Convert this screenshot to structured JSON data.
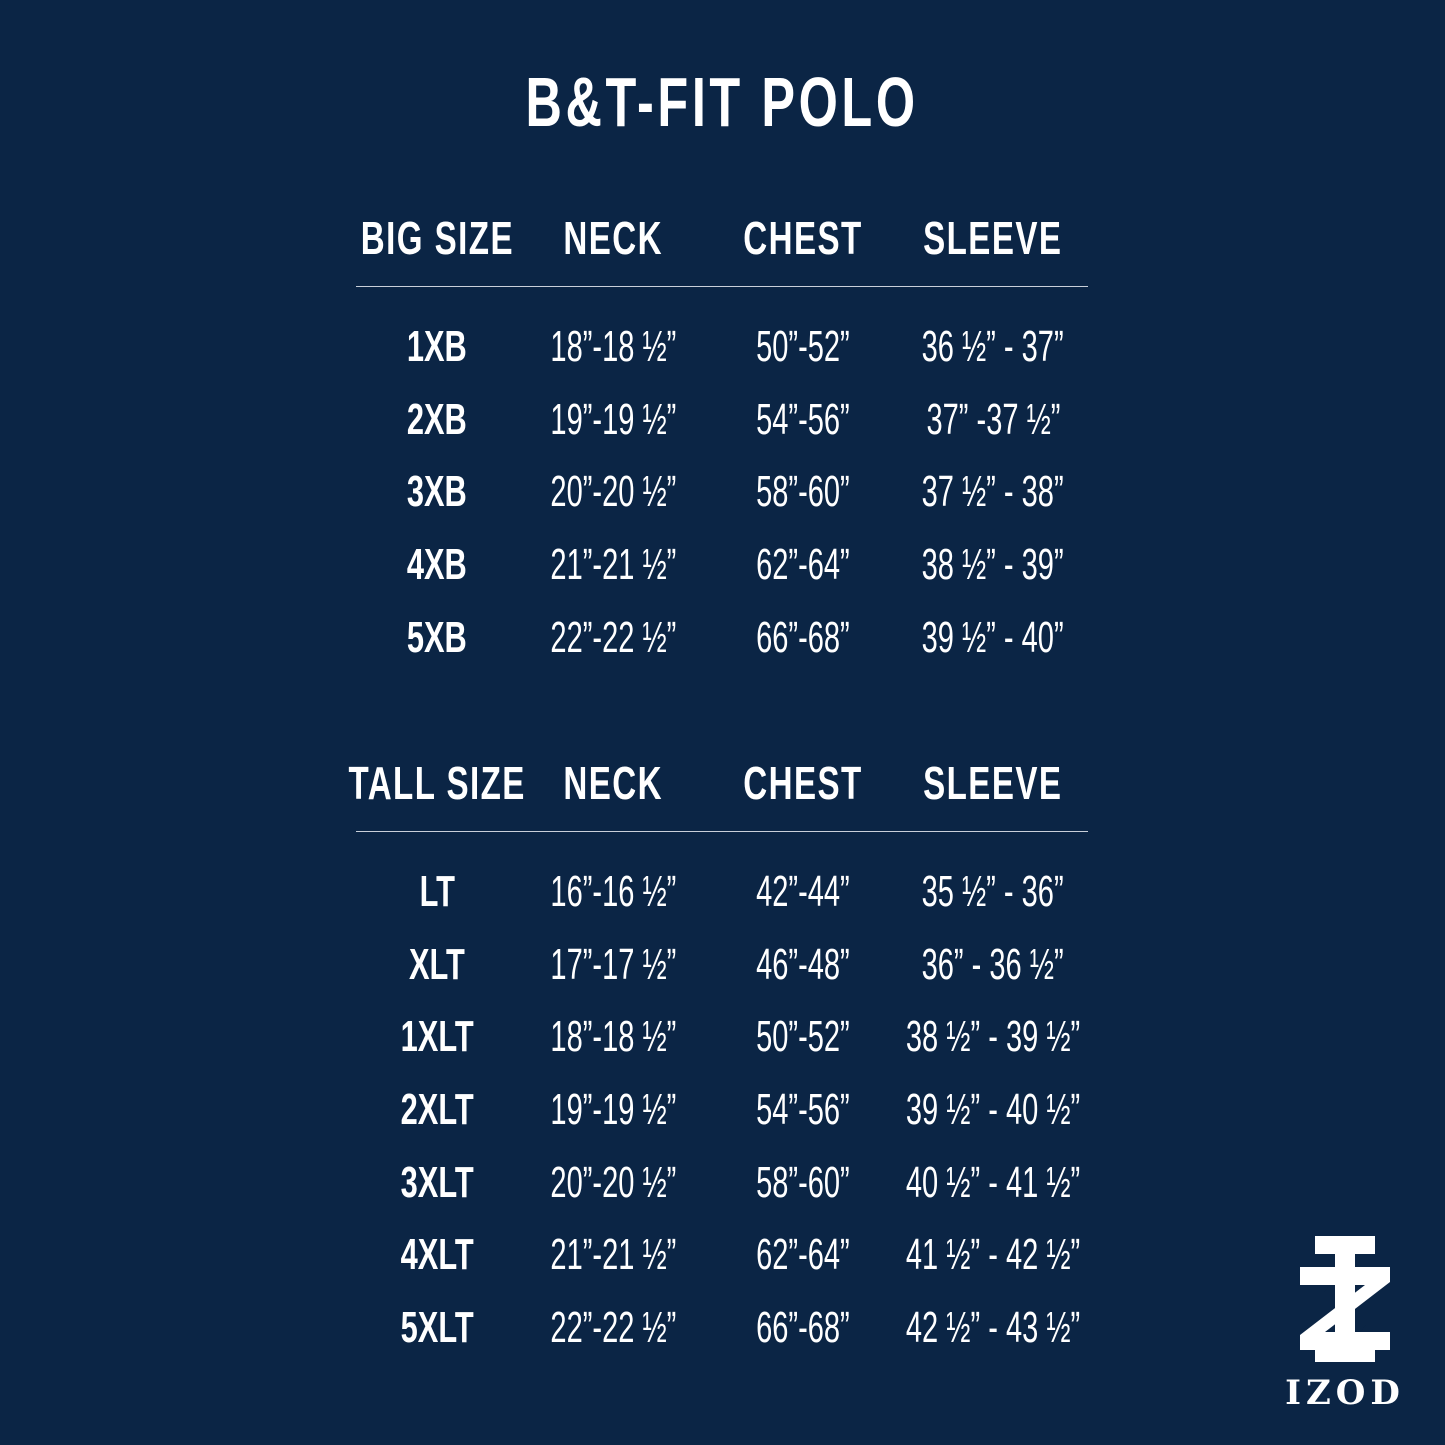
{
  "title": "B&T-FIT POLO",
  "big": {
    "headers": [
      "BIG SIZE",
      "NECK",
      "CHEST",
      "SLEEVE"
    ],
    "rows": [
      [
        "1XB",
        "18”-18 ½”",
        "50”-52”",
        "36 ½” - 37”"
      ],
      [
        "2XB",
        "19”-19 ½”",
        "54”-56”",
        "37” -37 ½”"
      ],
      [
        "3XB",
        "20”-20 ½”",
        "58”-60”",
        "37 ½” - 38”"
      ],
      [
        "4XB",
        "21”-21 ½”",
        "62”-64”",
        "38 ½” - 39”"
      ],
      [
        "5XB",
        "22”-22 ½”",
        "66”-68”",
        "39 ½” - 40”"
      ]
    ]
  },
  "tall": {
    "headers": [
      "TALL SIZE",
      "NECK",
      "CHEST",
      "SLEEVE"
    ],
    "rows": [
      [
        "LT",
        "16”-16 ½”",
        "42”-44”",
        "35 ½” - 36”"
      ],
      [
        "XLT",
        "17”-17 ½”",
        "46”-48”",
        "36” - 36 ½”"
      ],
      [
        "1XLT",
        "18”-18 ½”",
        "50”-52”",
        "38 ½” - 39 ½”"
      ],
      [
        "2XLT",
        "19”-19 ½”",
        "54”-56”",
        "39 ½” - 40 ½”"
      ],
      [
        "3XLT",
        "20”-20 ½”",
        "58”-60”",
        "40 ½” - 41 ½”"
      ],
      [
        "4XLT",
        "21”-21 ½”",
        "62”-64”",
        "41 ½” - 42 ½”"
      ],
      [
        "5XLT",
        "22”-22 ½”",
        "66”-68”",
        "42 ½” - 43 ½”"
      ]
    ]
  },
  "logo": {
    "text": "IZOD",
    "icon": "izod-monogram-icon"
  },
  "colors": {
    "background": "#0b2545",
    "text": "#ffffff"
  }
}
